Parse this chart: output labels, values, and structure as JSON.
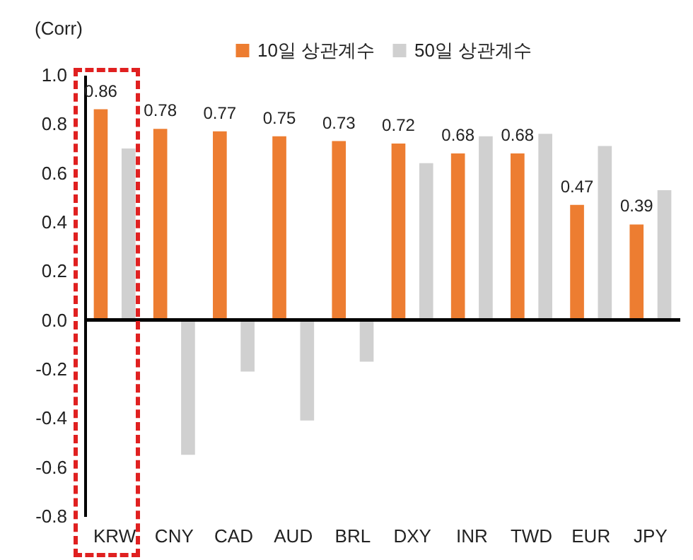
{
  "chart_data": {
    "type": "bar",
    "ylabel": "(Corr)",
    "categories": [
      "KRW",
      "CNY",
      "CAD",
      "AUD",
      "BRL",
      "DXY",
      "INR",
      "TWD",
      "EUR",
      "JPY"
    ],
    "series": [
      {
        "name": "10일 상관계수",
        "color": "#ed7d31",
        "values": [
          0.86,
          0.78,
          0.77,
          0.75,
          0.73,
          0.72,
          0.68,
          0.68,
          0.47,
          0.39
        ],
        "value_labels": [
          "0.86",
          "0.78",
          "0.77",
          "0.75",
          "0.73",
          "0.72",
          "0.68",
          "0.68",
          "0.47",
          "0.39"
        ]
      },
      {
        "name": "50일 상관계수",
        "color": "#d0d0d0",
        "values": [
          0.7,
          -0.55,
          -0.21,
          -0.41,
          -0.17,
          0.64,
          0.75,
          0.76,
          0.71,
          0.53
        ]
      }
    ],
    "ylim": [
      -0.8,
      1.0
    ],
    "yticks": [
      {
        "value": -0.8,
        "label": "-0.8"
      },
      {
        "value": -0.6,
        "label": "-0.6"
      },
      {
        "value": -0.4,
        "label": "-0.4"
      },
      {
        "value": -0.2,
        "label": "-0.2"
      },
      {
        "value": 0,
        "label": "0.0"
      },
      {
        "value": 0.2,
        "label": "0.2"
      },
      {
        "value": 0.4,
        "label": "0.4"
      },
      {
        "value": 0.6,
        "label": "0.6"
      },
      {
        "value": 0.8,
        "label": "0.8"
      },
      {
        "value": 1.0,
        "label": "1.0"
      }
    ],
    "legend": "top"
  }
}
